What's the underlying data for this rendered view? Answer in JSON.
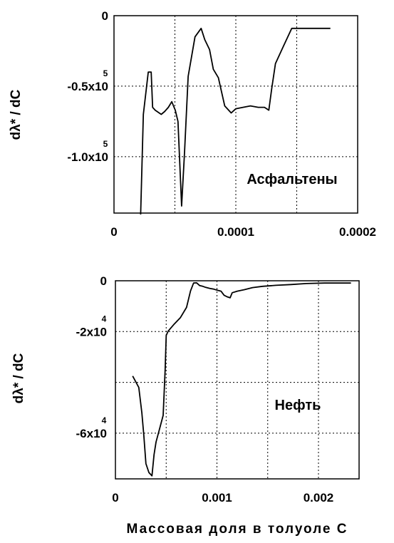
{
  "chart_data": [
    {
      "type": "line",
      "ylabel": "dλ* / dC",
      "annotation": "Асфальтены",
      "xlim": [
        0,
        0.0002
      ],
      "ylim": [
        -140000,
        0
      ],
      "x_ticks": [
        {
          "value": 0,
          "label": "0"
        },
        {
          "value": 0.0001,
          "label": "0.0001"
        },
        {
          "value": 0.0002,
          "label": "0.0002"
        }
      ],
      "y_ticks": [
        {
          "value": 0,
          "mantissa": "0",
          "exponent": ""
        },
        {
          "value": -50000,
          "mantissa": "-0.5x10",
          "exponent": "5"
        },
        {
          "value": -100000,
          "mantissa": "-1.0x10",
          "exponent": "5"
        }
      ],
      "x_grid": [
        5e-05,
        0.0001,
        0.00015
      ],
      "y_grid": [
        -50000,
        -100000
      ],
      "series": [
        {
          "x": [
            2.19e-05,
            2.41e-05,
            2.81e-05,
            3.05e-05,
            3.17e-05,
            3.38e-05,
            3.88e-05,
            4.16e-05,
            4.46e-05,
            4.74e-05,
            5.03e-05,
            5.25e-05,
            5.55e-05,
            5.79e-05,
            6.09e-05,
            6.65e-05,
            7.15e-05,
            7.45e-05,
            7.84e-05,
            8.15e-05,
            8.57e-05,
            9.09e-05,
            9.62e-05,
            0.0001,
            0.0001059,
            0.000112,
            0.0001184,
            0.0001235,
            0.0001271,
            0.0001294,
            0.0001325,
            0.0001389,
            0.0001459,
            0.0001776
          ],
          "y": [
            -141000,
            -70000,
            -40000,
            -40000,
            -65000,
            -67000,
            -70000,
            -68000,
            -65000,
            -61000,
            -67000,
            -75000,
            -135000,
            -97000,
            -43000,
            -15000,
            -9000,
            -17000,
            -24000,
            -38000,
            -44000,
            -64000,
            -69000,
            -66000,
            -65000,
            -64000,
            -65000,
            -65000,
            -67000,
            -52000,
            -34000,
            -22000,
            -9000,
            -9000
          ]
        }
      ]
    },
    {
      "type": "line",
      "ylabel": "dλ* / dC",
      "annotation": "Нефть",
      "xlim": [
        0,
        0.0024
      ],
      "ylim": [
        -78000,
        0
      ],
      "x_ticks": [
        {
          "value": 0,
          "label": "0"
        },
        {
          "value": 0.001,
          "label": "0.001"
        },
        {
          "value": 0.002,
          "label": "0.002"
        }
      ],
      "y_ticks": [
        {
          "value": 0,
          "mantissa": "0",
          "exponent": ""
        },
        {
          "value": -20000,
          "mantissa": "-2x10",
          "exponent": "4"
        },
        {
          "value": -60000,
          "mantissa": "-6x10",
          "exponent": "4"
        }
      ],
      "x_grid": [
        0.0005,
        0.001,
        0.0015,
        0.002
      ],
      "y_grid": [
        -20000,
        -40000,
        -60000
      ],
      "series": [
        {
          "x": [
            0.00017,
            0.00023,
            0.00026,
            0.00028,
            0.0003,
            0.00033,
            0.00036,
            0.00038,
            0.0004,
            0.00043,
            0.00047,
            0.00049,
            0.0005,
            0.00052,
            0.00058,
            0.00064,
            0.0007,
            0.00074,
            0.00077,
            0.0008,
            0.00083,
            0.00086,
            0.00089,
            0.00093,
            0.00097,
            0.00101,
            0.00104,
            0.00107,
            0.0011,
            0.00113,
            0.00115,
            0.0012,
            0.00127,
            0.00135,
            0.00145,
            0.00158,
            0.00173,
            0.00188,
            0.00206,
            0.00232
          ],
          "y": [
            -37500,
            -42000,
            -52000,
            -61000,
            -72000,
            -75500,
            -76800,
            -68500,
            -63500,
            -59000,
            -53000,
            -35000,
            -21500,
            -19800,
            -17000,
            -14500,
            -10500,
            -4000,
            -900,
            -800,
            -1900,
            -2200,
            -2600,
            -3000,
            -3300,
            -3800,
            -4100,
            -5700,
            -6300,
            -6700,
            -4700,
            -4100,
            -3500,
            -2700,
            -2200,
            -1800,
            -1500,
            -1100,
            -900,
            -900
          ]
        }
      ]
    }
  ],
  "xlabel": "Массовая доля в толуоле С"
}
